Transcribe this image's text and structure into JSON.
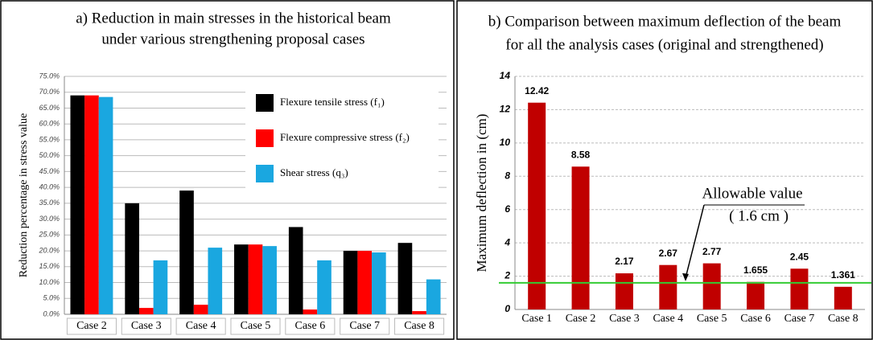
{
  "chart_data": [
    {
      "type": "grouped_bar",
      "title_lines": [
        "a) Reduction in main stresses in the historical beam",
        "under various strengthening proposal cases"
      ],
      "y_label": "Reduction percentage in stress value",
      "categories": [
        "Case 2",
        "Case 3",
        "Case 4",
        "Case 5",
        "Case 6",
        "Case 7",
        "Case 8"
      ],
      "series": [
        {
          "name": "Flexure tensile stress (f₁)",
          "color": "#000000",
          "values": [
            69,
            35,
            39,
            22,
            27.5,
            20,
            22.5
          ]
        },
        {
          "name": "Flexure compressive stress (f₂)",
          "color": "#ff0000",
          "values": [
            69,
            2,
            3,
            22,
            1.5,
            20,
            1
          ]
        },
        {
          "name": "Shear stress (q₃)",
          "color": "#1aa7e0",
          "values": [
            68.5,
            17,
            21,
            21.5,
            17,
            19.5,
            11
          ]
        }
      ],
      "ylim": [
        0,
        75
      ],
      "yticks": [
        {
          "value": 0,
          "label": "0.0%"
        },
        {
          "value": 5,
          "label": "5.0%"
        },
        {
          "value": 10,
          "label": "10.0%"
        },
        {
          "value": 15,
          "label": "15.0%"
        },
        {
          "value": 20,
          "label": "20.0%"
        },
        {
          "value": 25,
          "label": "25.0%"
        },
        {
          "value": 30,
          "label": "30.0%"
        },
        {
          "value": 35,
          "label": "35.0%"
        },
        {
          "value": 40,
          "label": "40.0%"
        },
        {
          "value": 45,
          "label": "45.0%"
        },
        {
          "value": 50,
          "label": "50.0%"
        },
        {
          "value": 55,
          "label": "55.0%"
        },
        {
          "value": 60,
          "label": "60.0%"
        },
        {
          "value": 65,
          "label": "65.0%"
        },
        {
          "value": 70,
          "label": "70.0%"
        },
        {
          "value": 75,
          "label": "75.0%"
        }
      ],
      "grid": true,
      "legend": "top-right"
    },
    {
      "type": "bar",
      "title_lines": [
        "b) Comparison between maximum deflection of the beam",
        "for all the analysis cases (original and strengthened)"
      ],
      "y_label": "Maximum deflection in (cm)",
      "categories": [
        "Case 1",
        "Case 2",
        "Case 3",
        "Case 4",
        "Case 5",
        "Case 6",
        "Case 7",
        "Case 8"
      ],
      "values": [
        12.42,
        8.58,
        2.17,
        2.67,
        2.77,
        1.655,
        2.45,
        1.361
      ],
      "value_labels": [
        "12.42",
        "8.58",
        "2.17",
        "2.67",
        "2.77",
        "1.655",
        "2.45",
        "1.361"
      ],
      "color": "#c00000",
      "ylim": [
        0,
        14
      ],
      "yticks": [
        0,
        2,
        4,
        6,
        8,
        10,
        12,
        14
      ],
      "grid": true,
      "reference_line": {
        "value": 1.6,
        "color": "#33cc33",
        "label": "Allowable value",
        "sublabel": "( 1.6 cm )"
      }
    }
  ]
}
